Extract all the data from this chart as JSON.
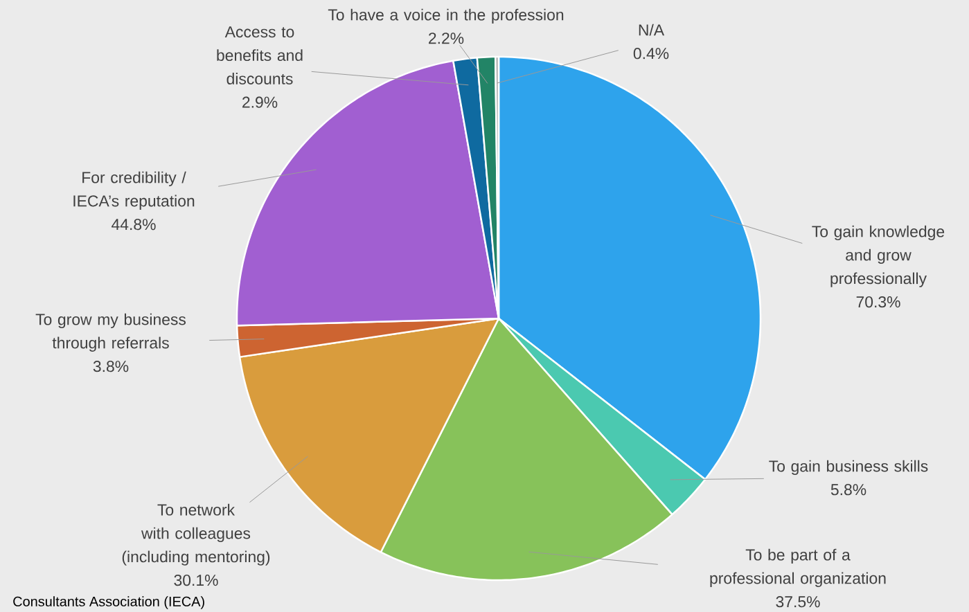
{
  "chart_data": {
    "type": "pie",
    "categories": [
      "To gain knowledge and grow professionally",
      "To gain business skills",
      "To be part of a professional organization",
      "To network with colleagues (including mentoring)",
      "To grow my business through referrals",
      "For credibility / IECA’s reputation",
      "Access to benefits and discounts",
      "To have a voice in the profession",
      "N/A"
    ],
    "values": [
      70.3,
      5.8,
      37.5,
      30.1,
      3.8,
      44.8,
      2.9,
      2.2,
      0.4
    ],
    "value_labels": [
      "70.3%",
      "5.8%",
      "37.5%",
      "30.1%",
      "3.8%",
      "44.8%",
      "2.9%",
      "2.2%",
      "0.4%"
    ],
    "colors": [
      "#2ea3ec",
      "#4bc9b0",
      "#87c25a",
      "#d99c3d",
      "#cd6431",
      "#a15fd1",
      "#0f6aa0",
      "#228466",
      "#b0b0b0"
    ],
    "annotations": [
      "Consultants Association (IECA)"
    ]
  }
}
